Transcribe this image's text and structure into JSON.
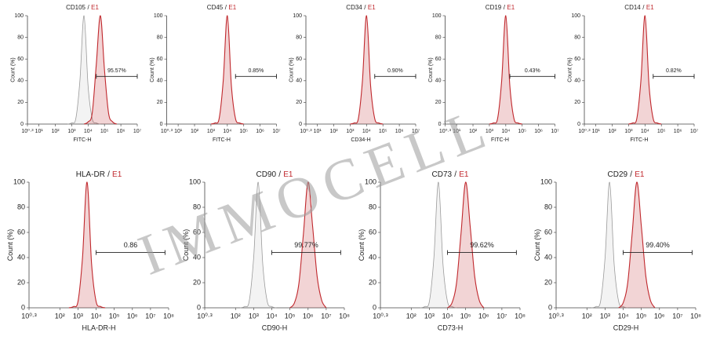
{
  "watermark": "IMMOCELL",
  "chart_data": [
    {
      "type": "area",
      "title": {
        "marker": "CD105",
        "separator": "/",
        "sample": "E1"
      },
      "xlabel": "FITC-H",
      "ylabel": "Count (%)",
      "xscale": "log",
      "xlim": [
        1.995,
        10000000
      ],
      "xticks": [
        {
          "value": 1.995,
          "label": "10⁰·³"
        },
        {
          "value": 10,
          "label": "10¹"
        },
        {
          "value": 100,
          "label": "10²"
        },
        {
          "value": 1000,
          "label": "10³"
        },
        {
          "value": 10000,
          "label": "10⁴"
        },
        {
          "value": 100000,
          "label": "10⁵"
        },
        {
          "value": 1000000,
          "label": "10⁶"
        },
        {
          "value": 10000000,
          "label": "10⁷"
        }
      ],
      "ylim": [
        0,
        100
      ],
      "yticks": [
        0,
        20,
        40,
        60,
        80,
        100
      ],
      "series": [
        {
          "color": "#9a9a9a",
          "x": [
            562,
            1000,
            1778,
            3162,
            5623,
            10000,
            17783,
            31623,
            56234
          ],
          "values": [
            0,
            1,
            5,
            40,
            100,
            35,
            5,
            1,
            0
          ]
        },
        {
          "color": "#c0282d",
          "x": [
            5623,
            10000,
            17783,
            31623,
            56234,
            100000,
            177828,
            316228,
            562341
          ],
          "values": [
            0,
            2,
            10,
            55,
            100,
            50,
            10,
            2,
            0
          ]
        }
      ],
      "gate": [
        31623,
        10000000
      ],
      "gate_label": "95.57%"
    },
    {
      "type": "area",
      "title": {
        "marker": "CD45",
        "separator": "/",
        "sample": "E1"
      },
      "xlabel": "FITC-H",
      "ylabel": "Count (%)",
      "xscale": "log",
      "xlim": [
        1.995,
        10000000
      ],
      "xticks": [
        {
          "value": 1.995,
          "label": "10⁰·³"
        },
        {
          "value": 10,
          "label": "10¹"
        },
        {
          "value": 100,
          "label": "10²"
        },
        {
          "value": 1000,
          "label": "10³"
        },
        {
          "value": 10000,
          "label": "10⁴"
        },
        {
          "value": 100000,
          "label": "10⁵"
        },
        {
          "value": 1000000,
          "label": "10⁶"
        },
        {
          "value": 10000000,
          "label": "10⁷"
        }
      ],
      "ylim": [
        0,
        100
      ],
      "yticks": [
        0,
        20,
        40,
        60,
        80,
        100
      ],
      "series": [
        {
          "color": "#c0282d",
          "x": [
            1000,
            1778,
            3162,
            5623,
            10000,
            17783,
            31623,
            56234,
            100000
          ],
          "values": [
            0,
            1,
            5,
            40,
            100,
            35,
            5,
            1,
            0
          ]
        }
      ],
      "gate": [
        31623,
        10000000
      ],
      "gate_label": "0.85%"
    },
    {
      "type": "area",
      "title": {
        "marker": "CD34",
        "separator": "/",
        "sample": "E1"
      },
      "xlabel": "CD34-H",
      "ylabel": "Count (%)",
      "xscale": "log",
      "xlim": [
        1.995,
        10000000
      ],
      "xticks": [
        {
          "value": 1.995,
          "label": "10⁰·³"
        },
        {
          "value": 10,
          "label": "10¹"
        },
        {
          "value": 100,
          "label": "10²"
        },
        {
          "value": 1000,
          "label": "10³"
        },
        {
          "value": 10000,
          "label": "10⁴"
        },
        {
          "value": 100000,
          "label": "10⁵"
        },
        {
          "value": 1000000,
          "label": "10⁶"
        },
        {
          "value": 10000000,
          "label": "10⁷"
        }
      ],
      "ylim": [
        0,
        100
      ],
      "yticks": [
        0,
        20,
        40,
        60,
        80,
        100
      ],
      "series": [
        {
          "color": "#c0282d",
          "x": [
            1000,
            1778,
            3162,
            5623,
            10000,
            17783,
            31623,
            56234,
            100000
          ],
          "values": [
            0,
            1,
            5,
            40,
            100,
            35,
            5,
            1,
            0
          ]
        }
      ],
      "gate": [
        31623,
        10000000
      ],
      "gate_label": "0.90%"
    },
    {
      "type": "area",
      "title": {
        "marker": "CD19",
        "separator": "/",
        "sample": "E1"
      },
      "xlabel": "FITC-H",
      "ylabel": "Count (%)",
      "xscale": "log",
      "xlim": [
        1.995,
        10000000
      ],
      "xticks": [
        {
          "value": 1.995,
          "label": "10⁰·³"
        },
        {
          "value": 10,
          "label": "10¹"
        },
        {
          "value": 100,
          "label": "10²"
        },
        {
          "value": 1000,
          "label": "10³"
        },
        {
          "value": 10000,
          "label": "10⁴"
        },
        {
          "value": 100000,
          "label": "10⁵"
        },
        {
          "value": 1000000,
          "label": "10⁶"
        },
        {
          "value": 10000000,
          "label": "10⁷"
        }
      ],
      "ylim": [
        0,
        100
      ],
      "yticks": [
        0,
        20,
        40,
        60,
        80,
        100
      ],
      "series": [
        {
          "color": "#c0282d",
          "x": [
            1000,
            1778,
            3162,
            5623,
            10000,
            17783,
            31623,
            56234,
            100000
          ],
          "values": [
            0,
            1,
            5,
            40,
            100,
            35,
            5,
            1,
            0
          ]
        }
      ],
      "gate": [
        17783,
        10000000
      ],
      "gate_label": "0.43%"
    },
    {
      "type": "area",
      "title": {
        "marker": "CD14",
        "separator": "/",
        "sample": "E1"
      },
      "xlabel": "FITC-H",
      "ylabel": "Count (%)",
      "xscale": "log",
      "xlim": [
        1.995,
        10000000
      ],
      "xticks": [
        {
          "value": 1.995,
          "label": "10⁰·³"
        },
        {
          "value": 10,
          "label": "10¹"
        },
        {
          "value": 100,
          "label": "10²"
        },
        {
          "value": 1000,
          "label": "10³"
        },
        {
          "value": 10000,
          "label": "10⁴"
        },
        {
          "value": 100000,
          "label": "10⁵"
        },
        {
          "value": 1000000,
          "label": "10⁶"
        },
        {
          "value": 10000000,
          "label": "10⁷"
        }
      ],
      "ylim": [
        0,
        100
      ],
      "yticks": [
        0,
        20,
        40,
        60,
        80,
        100
      ],
      "series": [
        {
          "color": "#c0282d",
          "x": [
            1000,
            1778,
            3162,
            5623,
            10000,
            17783,
            31623,
            56234,
            100000
          ],
          "values": [
            0,
            1,
            5,
            40,
            100,
            35,
            5,
            1,
            0
          ]
        }
      ],
      "gate": [
        31623,
        10000000
      ],
      "gate_label": "0.82%"
    },
    {
      "type": "area",
      "title": {
        "marker": "HLA-DR",
        "separator": "/",
        "sample": "E1"
      },
      "xlabel": "HLA-DR-H",
      "ylabel": "Count (%)",
      "xscale": "log",
      "xlim": [
        1.995,
        100000000
      ],
      "xticks": [
        {
          "value": 1.995,
          "label": "10⁰·³"
        },
        {
          "value": 100,
          "label": "10²"
        },
        {
          "value": 1000,
          "label": "10³"
        },
        {
          "value": 10000,
          "label": "10⁴"
        },
        {
          "value": 100000,
          "label": "10⁵"
        },
        {
          "value": 1000000,
          "label": "10⁶"
        },
        {
          "value": 10000000,
          "label": "10⁷"
        },
        {
          "value": 100000000,
          "label": "10⁸"
        }
      ],
      "ylim": [
        0,
        100
      ],
      "yticks": [
        0,
        20,
        40,
        60,
        80,
        100
      ],
      "series": [
        {
          "color": "#c0282d",
          "x": [
            316,
            562,
            1000,
            1778,
            3162,
            5623,
            10000,
            17783,
            31623
          ],
          "values": [
            0,
            1,
            5,
            40,
            100,
            35,
            5,
            1,
            0
          ]
        }
      ],
      "gate": [
        10000,
        63095734
      ],
      "gate_label": "0.86"
    },
    {
      "type": "area",
      "title": {
        "marker": "CD90",
        "separator": "/",
        "sample": "E1"
      },
      "xlabel": "CD90-H",
      "ylabel": "Count (%)",
      "xscale": "log",
      "xlim": [
        1.995,
        100000000
      ],
      "xticks": [
        {
          "value": 1.995,
          "label": "10⁰·³"
        },
        {
          "value": 100,
          "label": "10²"
        },
        {
          "value": 1000,
          "label": "10³"
        },
        {
          "value": 10000,
          "label": "10⁴"
        },
        {
          "value": 100000,
          "label": "10⁵"
        },
        {
          "value": 1000000,
          "label": "10⁶"
        },
        {
          "value": 10000000,
          "label": "10⁷"
        },
        {
          "value": 100000000,
          "label": "10⁸"
        }
      ],
      "ylim": [
        0,
        100
      ],
      "yticks": [
        0,
        20,
        40,
        60,
        80,
        100
      ],
      "series": [
        {
          "color": "#9a9a9a",
          "x": [
            178,
            316,
            562,
            1000,
            1778,
            3162,
            5623,
            10000,
            17783
          ],
          "values": [
            0,
            1,
            5,
            40,
            100,
            35,
            5,
            1,
            0
          ]
        },
        {
          "color": "#c0282d",
          "x": [
            100000,
            177828,
            316228,
            562341,
            1000000,
            1778279,
            3162278,
            5623413,
            10000000
          ],
          "values": [
            0,
            4,
            20,
            60,
            100,
            65,
            25,
            6,
            0
          ]
        }
      ],
      "gate": [
        10000,
        63095734
      ],
      "gate_label": "99.77%"
    },
    {
      "type": "area",
      "title": {
        "marker": "CD73",
        "separator": "/",
        "sample": "E1"
      },
      "xlabel": "CD73-H",
      "ylabel": "Count (%)",
      "xscale": "log",
      "xlim": [
        1.995,
        100000000
      ],
      "xticks": [
        {
          "value": 1.995,
          "label": "10⁰·³"
        },
        {
          "value": 100,
          "label": "10²"
        },
        {
          "value": 1000,
          "label": "10³"
        },
        {
          "value": 10000,
          "label": "10⁴"
        },
        {
          "value": 100000,
          "label": "10⁵"
        },
        {
          "value": 1000000,
          "label": "10⁶"
        },
        {
          "value": 10000000,
          "label": "10⁷"
        },
        {
          "value": 100000000,
          "label": "10⁸"
        }
      ],
      "ylim": [
        0,
        100
      ],
      "yticks": [
        0,
        20,
        40,
        60,
        80,
        100
      ],
      "series": [
        {
          "color": "#9a9a9a",
          "x": [
            316,
            562,
            1000,
            1778,
            3162,
            5623,
            10000,
            17783,
            31623
          ],
          "values": [
            0,
            1,
            5,
            40,
            100,
            35,
            5,
            1,
            0
          ]
        },
        {
          "color": "#c0282d",
          "x": [
            10000,
            17783,
            31623,
            56234,
            100000,
            177828,
            316228,
            562341,
            1000000
          ],
          "values": [
            0,
            4,
            20,
            60,
            100,
            65,
            25,
            6,
            0
          ]
        }
      ],
      "gate": [
        10000,
        63095734
      ],
      "gate_label": "99.62%"
    },
    {
      "type": "area",
      "title": {
        "marker": "CD29",
        "separator": "/",
        "sample": "E1"
      },
      "xlabel": "CD29-H",
      "ylabel": "Count (%)",
      "xscale": "log",
      "xlim": [
        1.995,
        100000000
      ],
      "xticks": [
        {
          "value": 1.995,
          "label": "10⁰·³"
        },
        {
          "value": 100,
          "label": "10²"
        },
        {
          "value": 1000,
          "label": "10³"
        },
        {
          "value": 10000,
          "label": "10⁴"
        },
        {
          "value": 100000,
          "label": "10⁵"
        },
        {
          "value": 1000000,
          "label": "10⁶"
        },
        {
          "value": 10000000,
          "label": "10⁷"
        },
        {
          "value": 100000000,
          "label": "10⁸"
        }
      ],
      "ylim": [
        0,
        100
      ],
      "yticks": [
        0,
        20,
        40,
        60,
        80,
        100
      ],
      "series": [
        {
          "color": "#9a9a9a",
          "x": [
            178,
            316,
            562,
            1000,
            1778,
            3162,
            5623,
            10000,
            17783
          ],
          "values": [
            0,
            1,
            5,
            40,
            100,
            35,
            5,
            1,
            0
          ]
        },
        {
          "color": "#c0282d",
          "x": [
            5623,
            10000,
            17783,
            31623,
            56234,
            100000,
            177828,
            316228,
            562341
          ],
          "values": [
            0,
            4,
            20,
            60,
            100,
            65,
            25,
            6,
            0
          ]
        }
      ],
      "gate": [
        10000,
        63095734
      ],
      "gate_label": "99.40%"
    }
  ]
}
